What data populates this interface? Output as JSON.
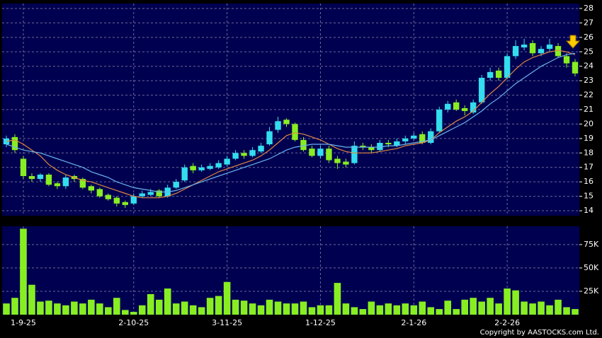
{
  "chart_data": [
    {
      "type": "candlestick",
      "categories": [
        null,
        null,
        "1-9-25",
        null,
        null,
        null,
        null,
        null,
        null,
        null,
        null,
        null,
        null,
        null,
        null,
        "2-10-25",
        null,
        null,
        null,
        null,
        null,
        null,
        null,
        null,
        null,
        null,
        "3-11-25",
        null,
        null,
        null,
        null,
        null,
        null,
        null,
        null,
        null,
        null,
        "1-12-25",
        null,
        null,
        null,
        null,
        null,
        null,
        null,
        null,
        null,
        null,
        "2-1-26",
        null,
        null,
        null,
        null,
        null,
        null,
        null,
        null,
        null,
        null,
        "2-2-26",
        null,
        null,
        null,
        null,
        null,
        null,
        null,
        null
      ],
      "open": [
        18.6,
        19.1,
        17.6,
        16.4,
        16.2,
        16.5,
        15.9,
        15.7,
        16.4,
        16.2,
        15.7,
        15.5,
        15.1,
        14.9,
        14.6,
        14.5,
        15.0,
        15.1,
        15.4,
        15.0,
        15.6,
        16.1,
        17.1,
        16.8,
        16.9,
        17.0,
        17.2,
        17.6,
        18.0,
        17.8,
        18.1,
        18.6,
        19.6,
        20.3,
        20.0,
        18.9,
        18.3,
        17.8,
        18.3,
        17.6,
        17.4,
        17.3,
        18.5,
        18.4,
        18.2,
        18.7,
        18.5,
        18.8,
        19.0,
        19.3,
        18.7,
        19.5,
        21.0,
        21.5,
        21.1,
        20.8,
        21.5,
        23.2,
        23.7,
        23.2,
        24.7,
        25.3,
        25.6,
        24.9,
        25.2,
        25.4,
        24.7,
        24.3
      ],
      "high": [
        19.2,
        19.3,
        17.8,
        16.6,
        16.6,
        16.6,
        16.0,
        16.5,
        16.5,
        16.3,
        15.8,
        15.6,
        15.2,
        15.0,
        14.7,
        15.2,
        15.4,
        15.5,
        15.5,
        15.8,
        16.2,
        17.2,
        17.3,
        17.2,
        17.3,
        17.5,
        17.8,
        18.2,
        18.2,
        18.4,
        18.7,
        19.8,
        20.5,
        20.4,
        20.1,
        19.1,
        18.5,
        18.5,
        18.5,
        17.8,
        17.6,
        18.8,
        18.7,
        18.6,
        18.9,
        18.9,
        19.0,
        19.2,
        19.4,
        19.5,
        19.7,
        21.2,
        21.6,
        21.7,
        21.3,
        21.7,
        23.4,
        23.9,
        23.9,
        24.9,
        25.8,
        25.9,
        25.8,
        25.4,
        25.9,
        25.6,
        24.9,
        24.5
      ],
      "low": [
        18.4,
        18.0,
        16.2,
        16.0,
        16.0,
        15.7,
        15.5,
        15.5,
        16.0,
        15.5,
        15.2,
        14.9,
        14.7,
        14.3,
        14.2,
        14.4,
        14.9,
        15.0,
        14.9,
        14.9,
        15.5,
        16.0,
        16.6,
        16.7,
        16.8,
        16.9,
        17.1,
        17.5,
        17.6,
        17.7,
        18.0,
        18.5,
        19.4,
        19.8,
        18.8,
        18.1,
        17.7,
        17.6,
        17.3,
        16.9,
        17.0,
        17.2,
        18.2,
        18.0,
        18.1,
        18.4,
        18.4,
        18.6,
        18.9,
        18.6,
        18.6,
        19.4,
        20.8,
        20.9,
        20.6,
        20.7,
        21.4,
        23.0,
        23.0,
        23.1,
        24.5,
        25.1,
        24.7,
        24.7,
        25.0,
        24.6,
        23.9,
        23.3
      ],
      "close": [
        19.0,
        18.2,
        16.4,
        16.2,
        16.5,
        15.8,
        15.7,
        16.3,
        16.2,
        15.6,
        15.4,
        15.0,
        14.8,
        14.5,
        14.4,
        15.0,
        15.2,
        15.3,
        15.0,
        15.6,
        16.0,
        17.0,
        16.8,
        17.0,
        17.1,
        17.3,
        17.6,
        18.0,
        17.8,
        18.2,
        18.5,
        19.5,
        20.2,
        20.0,
        18.9,
        18.2,
        17.8,
        18.3,
        17.5,
        17.3,
        17.2,
        18.5,
        18.4,
        18.2,
        18.7,
        18.6,
        18.8,
        19.0,
        19.2,
        18.7,
        19.5,
        21.0,
        21.4,
        21.0,
        20.9,
        21.5,
        23.2,
        23.6,
        23.2,
        24.7,
        25.4,
        25.5,
        24.9,
        25.2,
        25.5,
        24.7,
        24.2,
        23.5
      ],
      "up_color": "#33ddee",
      "down_color": "#88ee22",
      "lines": [
        {
          "color": "#e08840",
          "values": [
            18.8,
            18.9,
            18.6,
            18.2,
            17.8,
            17.2,
            16.8,
            16.5,
            16.3,
            16.1,
            16.0,
            15.8,
            15.6,
            15.4,
            15.2,
            15.0,
            14.9,
            14.9,
            14.9,
            15.0,
            15.2,
            15.5,
            15.8,
            16.1,
            16.4,
            16.7,
            16.9,
            17.1,
            17.3,
            17.5,
            17.8,
            18.2,
            18.7,
            19.2,
            19.4,
            19.3,
            19.1,
            18.9,
            18.6,
            18.3,
            18.1,
            18.0,
            18.0,
            18.0,
            18.1,
            18.2,
            18.3,
            18.5,
            18.6,
            18.7,
            18.9,
            19.4,
            19.8,
            20.2,
            20.5,
            20.9,
            21.5,
            22.1,
            22.6,
            23.2,
            23.8,
            24.3,
            24.6,
            24.8,
            25.0,
            25.1,
            25.0,
            24.8
          ]
        },
        {
          "color": "#6ab4ee",
          "values": [
            18.6,
            18.4,
            18.2,
            18.1,
            18.0,
            17.8,
            17.6,
            17.4,
            17.2,
            17.0,
            16.7,
            16.5,
            16.3,
            16.0,
            15.8,
            15.6,
            15.5,
            15.4,
            15.3,
            15.3,
            15.4,
            15.6,
            15.8,
            16.0,
            16.2,
            16.4,
            16.6,
            16.8,
            17.0,
            17.2,
            17.4,
            17.6,
            17.9,
            18.2,
            18.4,
            18.5,
            18.6,
            18.6,
            18.6,
            18.5,
            18.4,
            18.4,
            18.4,
            18.4,
            18.4,
            18.5,
            18.5,
            18.6,
            18.7,
            18.8,
            18.9,
            19.2,
            19.5,
            19.8,
            20.1,
            20.5,
            20.9,
            21.4,
            21.8,
            22.3,
            22.8,
            23.2,
            23.6,
            24.0,
            24.3,
            24.6,
            24.8,
            24.9
          ]
        }
      ],
      "ylim": [
        13.66,
        28.34
      ],
      "yticks": [
        14,
        15,
        16,
        17,
        18,
        19,
        20,
        21,
        22,
        23,
        24,
        25,
        26,
        27,
        28
      ],
      "grid": true
    },
    {
      "type": "bar",
      "values": [
        12000,
        18000,
        92000,
        32000,
        14000,
        15000,
        12000,
        10000,
        14000,
        12000,
        16000,
        12000,
        8000,
        18000,
        5000,
        3000,
        10000,
        22000,
        16000,
        28000,
        12000,
        14000,
        10000,
        8000,
        18000,
        20000,
        35000,
        16000,
        15000,
        12000,
        10000,
        16000,
        14000,
        12000,
        12000,
        14000,
        8000,
        10000,
        10000,
        34000,
        12000,
        8000,
        6000,
        14000,
        10000,
        12000,
        10000,
        12000,
        10000,
        14000,
        8000,
        6000,
        15000,
        6000,
        16000,
        18000,
        14000,
        18000,
        12000,
        28000,
        26000,
        14000,
        12000,
        14000,
        10000,
        16000,
        8000,
        6000
      ],
      "color": "#88ee22",
      "ylim": [
        0,
        94600
      ],
      "yticks": [
        {
          "value": 25000,
          "label": "25K"
        },
        {
          "value": 50000,
          "label": "50K"
        },
        {
          "value": 75000,
          "label": "75K"
        }
      ],
      "grid": true
    }
  ],
  "footer": "Copyright by AASTOCKS.com Ltd."
}
